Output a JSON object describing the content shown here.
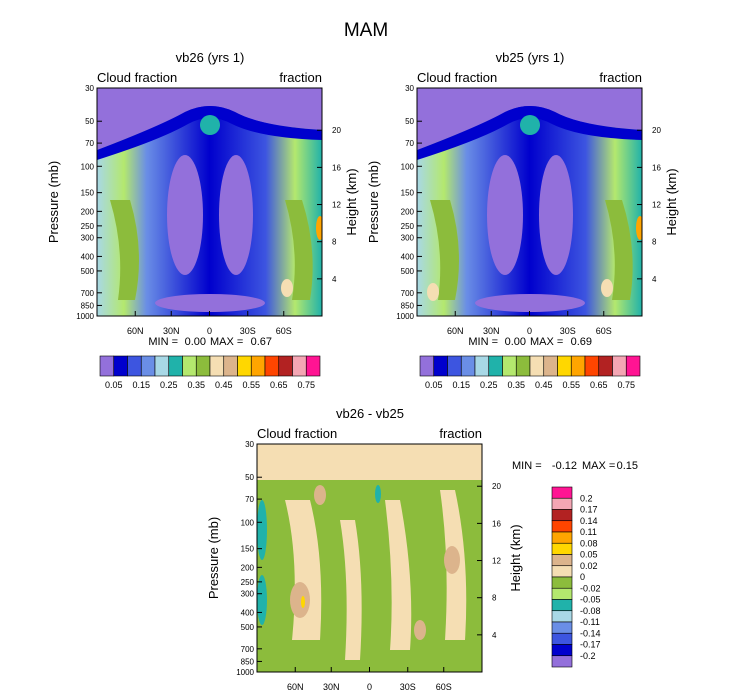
{
  "figure": {
    "title": "MAM"
  },
  "chart_data": [
    {
      "type": "heatmap",
      "title": "vb26 (yrs 1)",
      "left_label": "Cloud fraction",
      "right_label": "fraction",
      "xlabel": "",
      "ylabel": "Pressure (mb)",
      "ylabel_right": "Height (km)",
      "x_ticks": [
        "60N",
        "30N",
        "0",
        "30S",
        "60S"
      ],
      "y_ticks": [
        "30",
        "50",
        "70",
        "100",
        "150",
        "200",
        "250",
        "300",
        "400",
        "500",
        "700",
        "850",
        "1000"
      ],
      "y_right_ticks": [
        "20",
        "16",
        "12",
        "8",
        "4"
      ],
      "ylim": [
        1000,
        30
      ],
      "stats": {
        "min_label": "MIN =",
        "min": "0.00",
        "max_label": "MAX =",
        "max": "0.67"
      },
      "colorbar": {
        "orientation": "horizontal",
        "labels": [
          "0.05",
          "0.15",
          "0.25",
          "0.35",
          "0.45",
          "0.55",
          "0.65",
          "0.75"
        ],
        "colors": [
          "#9370db",
          "#0000cd",
          "#3d55e0",
          "#6a8ee6",
          "#a8d8e6",
          "#20b2aa",
          "#b4e86e",
          "#8cbc3c",
          "#f5deb3",
          "#dcb48c",
          "#ffd700",
          "#ffa500",
          "#ff4500",
          "#b22222",
          "#f4a6b4",
          "#ff1493"
        ]
      }
    },
    {
      "type": "heatmap",
      "title": "vb25 (yrs 1)",
      "left_label": "Cloud fraction",
      "right_label": "fraction",
      "xlabel": "",
      "ylabel": "Pressure (mb)",
      "ylabel_right": "Height (km)",
      "x_ticks": [
        "60N",
        "30N",
        "0",
        "30S",
        "60S"
      ],
      "y_ticks": [
        "30",
        "50",
        "70",
        "100",
        "150",
        "200",
        "250",
        "300",
        "400",
        "500",
        "700",
        "850",
        "1000"
      ],
      "y_right_ticks": [
        "20",
        "16",
        "12",
        "8",
        "4"
      ],
      "ylim": [
        1000,
        30
      ],
      "stats": {
        "min_label": "MIN =",
        "min": "0.00",
        "max_label": "MAX =",
        "max": "0.69"
      },
      "colorbar": {
        "orientation": "horizontal",
        "labels": [
          "0.05",
          "0.15",
          "0.25",
          "0.35",
          "0.45",
          "0.55",
          "0.65",
          "0.75"
        ],
        "colors": [
          "#9370db",
          "#0000cd",
          "#3d55e0",
          "#6a8ee6",
          "#a8d8e6",
          "#20b2aa",
          "#b4e86e",
          "#8cbc3c",
          "#f5deb3",
          "#dcb48c",
          "#ffd700",
          "#ffa500",
          "#ff4500",
          "#b22222",
          "#f4a6b4",
          "#ff1493"
        ]
      }
    },
    {
      "type": "heatmap",
      "title": "vb26 - vb25",
      "left_label": "Cloud fraction",
      "right_label": "fraction",
      "xlabel": "",
      "ylabel": "Pressure (mb)",
      "ylabel_right": "Height (km)",
      "x_ticks": [
        "60N",
        "30N",
        "0",
        "30S",
        "60S"
      ],
      "y_ticks": [
        "30",
        "50",
        "70",
        "100",
        "150",
        "200",
        "250",
        "300",
        "400",
        "500",
        "700",
        "850",
        "1000"
      ],
      "y_right_ticks": [
        "20",
        "16",
        "12",
        "8",
        "4"
      ],
      "ylim": [
        1000,
        30
      ],
      "stats": {
        "min_label": "MIN =",
        "min": "-0.12",
        "max_label": "MAX =",
        "max": "0.15"
      },
      "colorbar": {
        "orientation": "vertical",
        "labels": [
          "0.2",
          "0.17",
          "0.14",
          "0.11",
          "0.08",
          "0.05",
          "0.02",
          "0",
          "-0.02",
          "-0.05",
          "-0.08",
          "-0.11",
          "-0.14",
          "-0.17",
          "-0.2"
        ],
        "colors": [
          "#ff1493",
          "#f4a6b4",
          "#b22222",
          "#ff4500",
          "#ffa500",
          "#ffd700",
          "#dcb48c",
          "#f5deb3",
          "#8cbc3c",
          "#b4e86e",
          "#20b2aa",
          "#a8d8e6",
          "#6a8ee6",
          "#3d55e0",
          "#0000cd",
          "#9370db"
        ]
      }
    }
  ]
}
